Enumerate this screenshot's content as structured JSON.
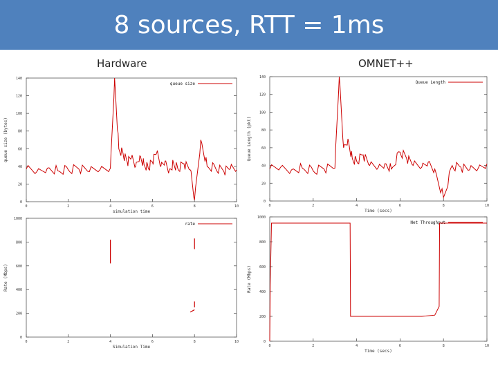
{
  "slide": {
    "title": "8 sources, RTT = 1ms",
    "left_label": "Hardware",
    "right_label": "OMNET++"
  },
  "colors": {
    "banner": "#4f81bd",
    "series": "#cc0000"
  },
  "chart_data": [
    {
      "id": "hw-queue",
      "type": "line",
      "title": "queue size",
      "xlabel": "simulation time",
      "ylabel": "queue size (bytes)",
      "xlim": [
        0,
        10
      ],
      "ylim": [
        0,
        140
      ],
      "xticks": [
        "0",
        "2",
        "4",
        "6",
        "8",
        "10"
      ],
      "yticks": [
        "0",
        "20",
        "40",
        "60",
        "80",
        "100",
        "120",
        "140"
      ],
      "series": [
        {
          "name": "queue size",
          "x": [
            0,
            0.5,
            1,
            1.5,
            2,
            2.5,
            3,
            3.5,
            4,
            4.2,
            4.4,
            4.6,
            4.8,
            5,
            5.2,
            5.4,
            5.6,
            5.8,
            6,
            6.2,
            6.4,
            6.6,
            6.8,
            7,
            7.2,
            7.5,
            7.8,
            8,
            8.3,
            8.6,
            9,
            9.4,
            9.7,
            10
          ],
          "y": [
            37,
            34,
            38,
            35,
            36,
            37,
            34,
            36,
            38,
            140,
            60,
            55,
            45,
            50,
            40,
            52,
            42,
            38,
            45,
            55,
            40,
            46,
            36,
            44,
            38,
            43,
            36,
            2,
            70,
            40,
            38,
            34,
            37,
            36
          ]
        }
      ]
    },
    {
      "id": "sim-queue",
      "type": "line",
      "title": "Queue Length",
      "xlabel": "Time (secs)",
      "ylabel": "Queue Length (pkt)",
      "xlim": [
        0,
        10
      ],
      "ylim": [
        0,
        140
      ],
      "xticks": [
        "0",
        "2",
        "4",
        "6",
        "8",
        "10"
      ],
      "yticks": [
        "0",
        "20",
        "40",
        "60",
        "80",
        "100",
        "120",
        "140"
      ],
      "series": [
        {
          "name": "Queue Length",
          "x": [
            0,
            0.5,
            1,
            1.5,
            2,
            2.5,
            3,
            3.2,
            3.4,
            3.6,
            3.8,
            4,
            4.3,
            4.6,
            5,
            5.3,
            5.6,
            6,
            6.3,
            6.6,
            7,
            7.3,
            7.6,
            8,
            8.4,
            8.8,
            9.2,
            9.6,
            10
          ],
          "y": [
            36,
            38,
            35,
            37,
            34,
            36,
            37,
            140,
            60,
            70,
            48,
            45,
            52,
            40,
            38,
            42,
            36,
            55,
            48,
            40,
            38,
            44,
            36,
            4,
            40,
            38,
            35,
            37,
            42
          ]
        }
      ]
    },
    {
      "id": "hw-rate",
      "type": "line",
      "title": "",
      "legend": "rate",
      "xlabel": "Simulation Time",
      "ylabel": "Rate (Mbps)",
      "xlim": [
        0,
        10
      ],
      "ylim": [
        0,
        1000
      ],
      "xticks": [
        "0",
        "2",
        "4",
        "6",
        "8",
        "10"
      ],
      "yticks": [
        "0",
        "200",
        "400",
        "600",
        "800",
        "1000"
      ],
      "segments": [
        {
          "x": [
            4,
            4
          ],
          "y": [
            620,
            820
          ]
        },
        {
          "x": [
            8,
            8
          ],
          "y": [
            740,
            830
          ]
        },
        {
          "x": [
            8,
            8
          ],
          "y": [
            250,
            300
          ]
        },
        {
          "x": [
            7.8,
            8
          ],
          "y": [
            210,
            230
          ]
        }
      ]
    },
    {
      "id": "sim-throughput",
      "type": "line",
      "title": "",
      "legend": "Net Throughput",
      "xlabel": "Time (secs)",
      "ylabel": "Rate (Mbps)",
      "xlim": [
        0,
        10
      ],
      "ylim": [
        0,
        1000
      ],
      "xticks": [
        "0",
        "2",
        "4",
        "6",
        "8",
        "10"
      ],
      "yticks": [
        "0",
        "200",
        "400",
        "600",
        "800",
        "1000"
      ],
      "series": [
        {
          "name": "Net Throughput",
          "x": [
            0,
            0.02,
            0.04,
            0.08,
            3.7,
            3.72,
            4,
            4.5,
            5,
            6,
            7,
            7.6,
            7.8,
            7.82,
            8,
            9,
            10
          ],
          "y": [
            0,
            450,
            600,
            950,
            950,
            200,
            200,
            200,
            200,
            200,
            200,
            210,
            280,
            950,
            950,
            950,
            950
          ]
        }
      ]
    }
  ]
}
